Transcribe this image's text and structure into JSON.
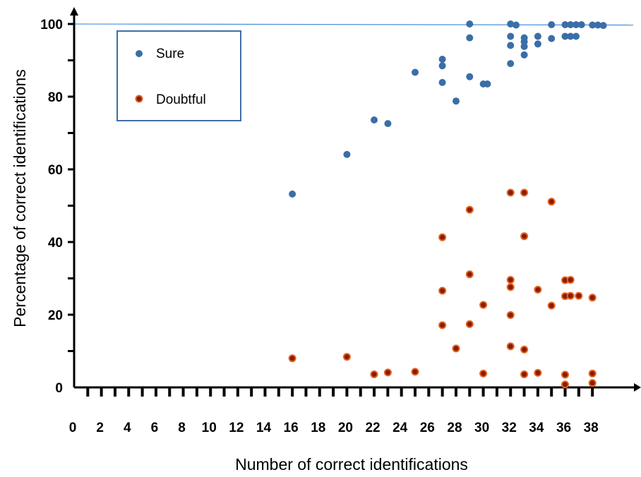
{
  "chart_data": {
    "type": "scatter",
    "xlabel": "Number of correct identifications",
    "ylabel": "Percentage of correct identifications",
    "xlim": [
      0,
      39.5
    ],
    "ylim": [
      0,
      100
    ],
    "x_ticks": [
      0,
      2,
      4,
      6,
      8,
      10,
      12,
      14,
      16,
      18,
      20,
      22,
      24,
      26,
      28,
      30,
      32,
      34,
      36,
      38
    ],
    "x_tick_labels": [
      "0",
      "2",
      "4",
      "6",
      "8",
      "10",
      "12",
      "14",
      "16",
      "18",
      "20",
      "22",
      "24",
      "26",
      "28",
      "30",
      "32",
      "34",
      "36",
      "38"
    ],
    "y_ticks": [
      0,
      20,
      40,
      60,
      80,
      100
    ],
    "y_tick_labels": [
      "0",
      "20",
      "40",
      "60",
      "80",
      "100"
    ],
    "reference_line": {
      "y": 100,
      "color": "#4a90d9"
    },
    "legend": {
      "position": "top-left"
    },
    "series": [
      {
        "name": "Sure",
        "color": "#3a6ea8",
        "points": [
          [
            16,
            53.2
          ],
          [
            20,
            64.1
          ],
          [
            22,
            73.6
          ],
          [
            23,
            72.6
          ],
          [
            25,
            86.7
          ],
          [
            27,
            90.3
          ],
          [
            27,
            88.5
          ],
          [
            27,
            83.9
          ],
          [
            28,
            78.8
          ],
          [
            29,
            100
          ],
          [
            29,
            96.2
          ],
          [
            29,
            85.5
          ],
          [
            30,
            83.5
          ],
          [
            30.3,
            83.5
          ],
          [
            32,
            100
          ],
          [
            32.4,
            99.7
          ],
          [
            32,
            96.6
          ],
          [
            32,
            94.1
          ],
          [
            32,
            89.1
          ],
          [
            33,
            96.2
          ],
          [
            33,
            95.1
          ],
          [
            33,
            93.8
          ],
          [
            33,
            91.5
          ],
          [
            34,
            96.6
          ],
          [
            34,
            94.5
          ],
          [
            35,
            99.8
          ],
          [
            35,
            96
          ],
          [
            36,
            99.8
          ],
          [
            36.4,
            99.8
          ],
          [
            36.8,
            99.8
          ],
          [
            36,
            96.6
          ],
          [
            36.4,
            96.6
          ],
          [
            36.8,
            96.6
          ],
          [
            37.2,
            99.8
          ],
          [
            38,
            99.7
          ],
          [
            38.4,
            99.7
          ],
          [
            38.8,
            99.6
          ]
        ]
      },
      {
        "name": "Doubtful",
        "color": "#cc4a1a",
        "points": [
          [
            16,
            8
          ],
          [
            20,
            8.4
          ],
          [
            22,
            3.6
          ],
          [
            23,
            4.1
          ],
          [
            25,
            4.3
          ],
          [
            27,
            41.3
          ],
          [
            27,
            26.6
          ],
          [
            27,
            17.1
          ],
          [
            28,
            10.7
          ],
          [
            29,
            48.9
          ],
          [
            29,
            31.1
          ],
          [
            29,
            17.4
          ],
          [
            30,
            22.7
          ],
          [
            30,
            3.8
          ],
          [
            32,
            53.6
          ],
          [
            32,
            29.6
          ],
          [
            32,
            27.6
          ],
          [
            32,
            19.9
          ],
          [
            32,
            11.3
          ],
          [
            33,
            53.6
          ],
          [
            33,
            41.6
          ],
          [
            33,
            10.4
          ],
          [
            33,
            3.6
          ],
          [
            34,
            26.9
          ],
          [
            34,
            4
          ],
          [
            35,
            51.1
          ],
          [
            35,
            22.5
          ],
          [
            36,
            29.5
          ],
          [
            36.4,
            29.6
          ],
          [
            36,
            25.1
          ],
          [
            36.4,
            25.2
          ],
          [
            37,
            25.2
          ],
          [
            36,
            3.5
          ],
          [
            36,
            0.8
          ],
          [
            38,
            24.7
          ],
          [
            38,
            3.8
          ],
          [
            38,
            1.2
          ]
        ]
      }
    ]
  }
}
